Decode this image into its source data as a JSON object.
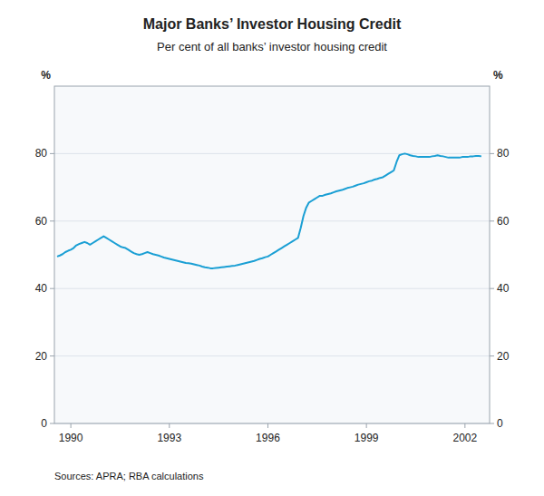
{
  "chart_data": {
    "type": "line",
    "title": "Major Banks’ Investor Housing Credit",
    "subtitle": "Per cent of all banks’ investor housing credit",
    "ylabel": "%",
    "y2label": "%",
    "source": "Sources: APRA; RBA calculations",
    "color": "#1a9fd4",
    "grid": true,
    "xlim": [
      1989.5,
      2002.75
    ],
    "xticks": [
      1990,
      1993,
      1996,
      1999,
      2002
    ],
    "ylim": [
      0,
      100
    ],
    "yticks": [
      0,
      20,
      40,
      60,
      80
    ],
    "y2lim": [
      0,
      100
    ],
    "y2ticks": [
      0,
      20,
      40,
      60,
      80
    ],
    "x": [
      1989.583,
      1989.667,
      1989.75,
      1989.833,
      1989.917,
      1990.0,
      1990.083,
      1990.167,
      1990.25,
      1990.333,
      1990.417,
      1990.5,
      1990.583,
      1990.667,
      1990.75,
      1990.833,
      1990.917,
      1991.0,
      1991.083,
      1991.167,
      1991.25,
      1991.333,
      1991.417,
      1991.5,
      1991.583,
      1991.667,
      1991.75,
      1991.833,
      1991.917,
      1992.0,
      1992.083,
      1992.167,
      1992.25,
      1992.333,
      1992.417,
      1992.5,
      1992.583,
      1992.667,
      1992.75,
      1992.833,
      1992.917,
      1993.0,
      1993.083,
      1993.167,
      1993.25,
      1993.333,
      1993.417,
      1993.5,
      1993.583,
      1993.667,
      1993.75,
      1993.833,
      1993.917,
      1994.0,
      1994.083,
      1994.167,
      1994.25,
      1994.333,
      1994.417,
      1994.5,
      1994.583,
      1994.667,
      1994.75,
      1994.833,
      1994.917,
      1995.0,
      1995.083,
      1995.167,
      1995.25,
      1995.333,
      1995.417,
      1995.5,
      1995.583,
      1995.667,
      1995.75,
      1995.833,
      1995.917,
      1996.0,
      1996.083,
      1996.167,
      1996.25,
      1996.333,
      1996.417,
      1996.5,
      1996.583,
      1996.667,
      1996.75,
      1996.833,
      1996.917,
      1997.0,
      1997.083,
      1997.167,
      1997.25,
      1997.333,
      1997.417,
      1997.5,
      1997.583,
      1997.667,
      1997.75,
      1997.833,
      1997.917,
      1998.0,
      1998.083,
      1998.167,
      1998.25,
      1998.333,
      1998.417,
      1998.5,
      1998.583,
      1998.667,
      1998.75,
      1998.833,
      1998.917,
      1999.0,
      1999.083,
      1999.167,
      1999.25,
      1999.333,
      1999.417,
      1999.5,
      1999.583,
      1999.667,
      1999.75,
      1999.833,
      1999.917,
      2000.0,
      2000.083,
      2000.167,
      2000.25,
      2000.333,
      2000.417,
      2000.5,
      2000.583,
      2000.667,
      2000.75,
      2000.833,
      2000.917,
      2001.0,
      2001.083,
      2001.167,
      2001.25,
      2001.333,
      2001.417,
      2001.5,
      2001.583,
      2001.667,
      2001.75,
      2001.833,
      2001.917,
      2002.0,
      2002.083,
      2002.167,
      2002.25,
      2002.333,
      2002.417,
      2002.5
    ],
    "values": [
      49.5,
      49.8,
      50.2,
      50.8,
      51.2,
      51.5,
      52.0,
      52.8,
      53.2,
      53.5,
      53.8,
      53.5,
      53.0,
      53.5,
      54.0,
      54.5,
      55.0,
      55.5,
      55.0,
      54.5,
      54.0,
      53.5,
      53.0,
      52.5,
      52.2,
      52.0,
      51.5,
      51.0,
      50.5,
      50.2,
      50.0,
      50.2,
      50.5,
      50.8,
      50.5,
      50.2,
      50.0,
      49.8,
      49.5,
      49.2,
      49.0,
      48.8,
      48.6,
      48.4,
      48.2,
      48.0,
      47.8,
      47.6,
      47.5,
      47.4,
      47.2,
      47.0,
      46.8,
      46.5,
      46.3,
      46.2,
      46.0,
      46.0,
      46.1,
      46.2,
      46.3,
      46.4,
      46.5,
      46.6,
      46.7,
      46.8,
      47.0,
      47.2,
      47.4,
      47.6,
      47.8,
      48.0,
      48.2,
      48.5,
      48.8,
      49.0,
      49.3,
      49.5,
      50.0,
      50.5,
      51.0,
      51.5,
      52.0,
      52.5,
      53.0,
      53.5,
      54.0,
      54.5,
      55.0,
      58.0,
      61.5,
      64.0,
      65.5,
      66.0,
      66.5,
      67.0,
      67.5,
      67.5,
      67.8,
      68.0,
      68.2,
      68.5,
      68.8,
      69.0,
      69.2,
      69.5,
      69.8,
      70.0,
      70.2,
      70.5,
      70.8,
      71.0,
      71.2,
      71.5,
      71.8,
      72.0,
      72.3,
      72.5,
      72.8,
      73.0,
      73.5,
      74.0,
      74.5,
      75.0,
      77.5,
      79.5,
      79.8,
      80.0,
      79.8,
      79.5,
      79.3,
      79.2,
      79.0,
      79.0,
      79.0,
      79.0,
      79.0,
      79.2,
      79.3,
      79.5,
      79.3,
      79.2,
      79.0,
      78.8,
      78.8,
      78.8,
      78.8,
      78.8,
      79.0,
      79.0,
      79.0,
      79.2,
      79.2,
      79.3,
      79.3,
      79.2
    ]
  }
}
